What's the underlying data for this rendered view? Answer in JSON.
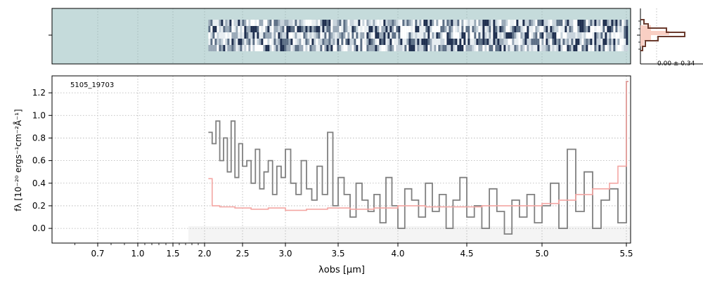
{
  "figure": {
    "object_label": "5105_19703",
    "xlabel": "λobs [μm]",
    "ylabel": "fλ [10⁻²⁰ ergs⁻¹cm⁻²Å⁻¹]",
    "noise_label": "0.00 ± 0.34"
  },
  "colors": {
    "spectrum": "#808080",
    "model": "#f4a6a3",
    "histogram": "#6b3b2e",
    "histogram_fill": "#f9cfc4",
    "image_bg": "#c5dbdb",
    "grid": "#b0b0b0"
  },
  "chart_data": {
    "type": "line",
    "xscale": "nonlinear (wavelength axis)",
    "xlim": [
      0.5,
      5.52
    ],
    "ylim": [
      -0.13,
      1.35
    ],
    "xticks": [
      0.7,
      1.0,
      1.5,
      2.0,
      2.5,
      3.0,
      3.5,
      4.0,
      4.5,
      5.0,
      5.5
    ],
    "xtick_labels": [
      "0.7",
      "1.0",
      "1.5",
      "2.0",
      "2.5",
      "3.0",
      "3.5",
      "4.0",
      "4.5",
      "5.0",
      "5.5"
    ],
    "yticks": [
      0.0,
      0.2,
      0.4,
      0.6,
      0.8,
      1.0,
      1.2
    ],
    "ytick_labels": [
      "0.0",
      "0.2",
      "0.4",
      "0.6",
      "0.8",
      "1.0",
      "1.2"
    ],
    "grid": true,
    "series": [
      {
        "role": "spectrum",
        "x": [
          2.05,
          2.1,
          2.15,
          2.2,
          2.25,
          2.3,
          2.35,
          2.4,
          2.45,
          2.5,
          2.55,
          2.6,
          2.65,
          2.7,
          2.75,
          2.8,
          2.85,
          2.9,
          2.95,
          3.0,
          3.05,
          3.1,
          3.15,
          3.2,
          3.25,
          3.3,
          3.35,
          3.4,
          3.45,
          3.5,
          3.55,
          3.6,
          3.65,
          3.7,
          3.75,
          3.8,
          3.85,
          3.9,
          3.95,
          4.0,
          4.05,
          4.1,
          4.15,
          4.2,
          4.25,
          4.3,
          4.35,
          4.4,
          4.45,
          4.5,
          4.55,
          4.6,
          4.65,
          4.7,
          4.75,
          4.8,
          4.85,
          4.9,
          4.95,
          5.0,
          5.05,
          5.1,
          5.15,
          5.2,
          5.25,
          5.3,
          5.35,
          5.4,
          5.45,
          5.5
        ],
        "y": [
          0.85,
          0.75,
          0.95,
          0.6,
          0.8,
          0.5,
          0.95,
          0.45,
          0.75,
          0.55,
          0.6,
          0.4,
          0.7,
          0.35,
          0.5,
          0.6,
          0.3,
          0.55,
          0.45,
          0.7,
          0.4,
          0.3,
          0.6,
          0.35,
          0.25,
          0.55,
          0.3,
          0.85,
          0.2,
          0.45,
          0.3,
          0.1,
          0.4,
          0.25,
          0.15,
          0.3,
          0.05,
          0.45,
          0.2,
          0.0,
          0.35,
          0.25,
          0.1,
          0.4,
          0.15,
          0.3,
          0.0,
          0.25,
          0.45,
          0.1,
          0.2,
          0.0,
          0.35,
          0.15,
          -0.05,
          0.25,
          0.1,
          0.3,
          0.05,
          0.2,
          0.4,
          0.0,
          0.7,
          0.15,
          0.5,
          0.0,
          0.25,
          0.35,
          0.05,
          1.3
        ]
      },
      {
        "role": "model",
        "x": [
          2.05,
          2.1,
          2.2,
          2.4,
          2.6,
          2.8,
          3.0,
          3.2,
          3.4,
          3.6,
          3.8,
          4.0,
          4.2,
          4.4,
          4.6,
          4.8,
          5.0,
          5.1,
          5.2,
          5.3,
          5.4,
          5.45,
          5.5
        ],
        "y": [
          0.44,
          0.2,
          0.19,
          0.18,
          0.17,
          0.18,
          0.16,
          0.17,
          0.18,
          0.17,
          0.18,
          0.2,
          0.19,
          0.19,
          0.2,
          0.2,
          0.22,
          0.25,
          0.3,
          0.35,
          0.4,
          0.55,
          1.3
        ]
      }
    ]
  }
}
